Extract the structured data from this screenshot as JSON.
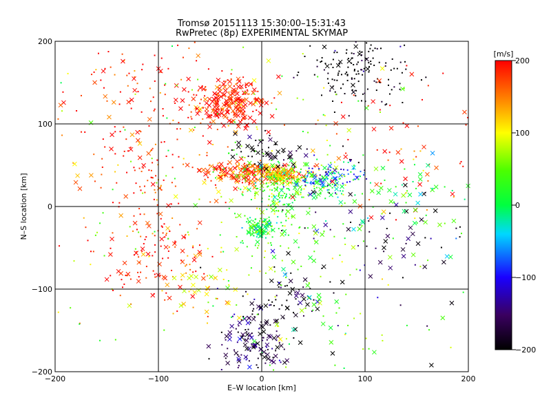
{
  "chart_data": {
    "type": "scatter",
    "title": "Tromsø 20151113 15:30:00–15:31:43",
    "subtitle": "RwPretec (8p) EXPERIMENTAL SKYMAP",
    "xlabel": "E–W location [km]",
    "ylabel": "N–S location [km]",
    "xlim": [
      -200,
      200
    ],
    "ylim": [
      -200,
      200
    ],
    "x_ticks": [
      "−200",
      "−100",
      "0",
      "100",
      "200"
    ],
    "y_ticks": [
      "−200",
      "−100",
      "0",
      "100",
      "200"
    ],
    "grid": "on (every 100 km)",
    "colorbar": {
      "label": "[m/s]",
      "range": [
        -200,
        200
      ],
      "ticks": [
        "200",
        "100",
        "0",
        "−100",
        "−200"
      ],
      "colormap": "rainbow: black → purple → blue → cyan → green → yellow → orange → red"
    },
    "markers": [
      "dot = small symbol",
      "x = cross symbol"
    ],
    "clusters": [
      {
        "x": -30,
        "y": 125,
        "sx": 18,
        "sy": 15,
        "v": 190,
        "n": 240,
        "cross": 0.55
      },
      {
        "x": -10,
        "y": 40,
        "sx": 25,
        "sy": 7,
        "v": 170,
        "n": 180,
        "cross": 0.6
      },
      {
        "x": 18,
        "y": 38,
        "sx": 12,
        "sy": 5,
        "v": 105,
        "n": 110,
        "cross": 0.45
      },
      {
        "x": 50,
        "y": 28,
        "sx": 22,
        "sy": 12,
        "v": 20,
        "n": 140,
        "cross": 0.3
      },
      {
        "x": 65,
        "y": 35,
        "sx": 18,
        "sy": 10,
        "v": -95,
        "n": 80,
        "cross": 0.2
      },
      {
        "x": 5,
        "y": 5,
        "sx": 18,
        "sy": 30,
        "v": 35,
        "n": 190,
        "cross": 0.15
      },
      {
        "x": -2,
        "y": -27,
        "sx": 6,
        "sy": 5,
        "v": 10,
        "n": 80,
        "cross": 0.35
      },
      {
        "x": 90,
        "y": 165,
        "sx": 24,
        "sy": 20,
        "v": -210,
        "n": 150,
        "cross": 0.1
      },
      {
        "x": -10,
        "y": -165,
        "sx": 18,
        "sy": 22,
        "v": -170,
        "n": 140,
        "cross": 0.5
      },
      {
        "x": -100,
        "y": -60,
        "sx": 30,
        "sy": 30,
        "v": 190,
        "n": 130,
        "cross": 0.25
      },
      {
        "x": -110,
        "y": 50,
        "sx": 40,
        "sy": 40,
        "v": 185,
        "n": 140,
        "cross": 0.2
      },
      {
        "x": -120,
        "y": 150,
        "sx": 40,
        "sy": 35,
        "v": 190,
        "n": 80,
        "cross": 0.3
      },
      {
        "x": 10,
        "y": 65,
        "sx": 20,
        "sy": 12,
        "v": -200,
        "n": 50,
        "cross": 0.7
      },
      {
        "x": 20,
        "y": -110,
        "sx": 20,
        "sy": 15,
        "v": -200,
        "n": 50,
        "cross": 0.4
      },
      {
        "x": 120,
        "y": -40,
        "sx": 60,
        "sy": 70,
        "v": -180,
        "n": 90,
        "cross": 0.5
      },
      {
        "x": 130,
        "y": 70,
        "sx": 45,
        "sy": 50,
        "v": 180,
        "n": 70,
        "cross": 0.45
      },
      {
        "x": 130,
        "y": 10,
        "sx": 40,
        "sy": 25,
        "v": 15,
        "n": 60,
        "cross": 0.6
      },
      {
        "x": -50,
        "y": -100,
        "sx": 25,
        "sy": 15,
        "v": 100,
        "n": 30,
        "cross": 0.4
      },
      {
        "x": 60,
        "y": -100,
        "sx": 40,
        "sy": 50,
        "v": 50,
        "n": 60,
        "cross": 0.3
      },
      {
        "x": 0,
        "y": 0,
        "sx": 120,
        "sy": 120,
        "v": 60,
        "n": 220,
        "cross": 0.2
      }
    ]
  }
}
